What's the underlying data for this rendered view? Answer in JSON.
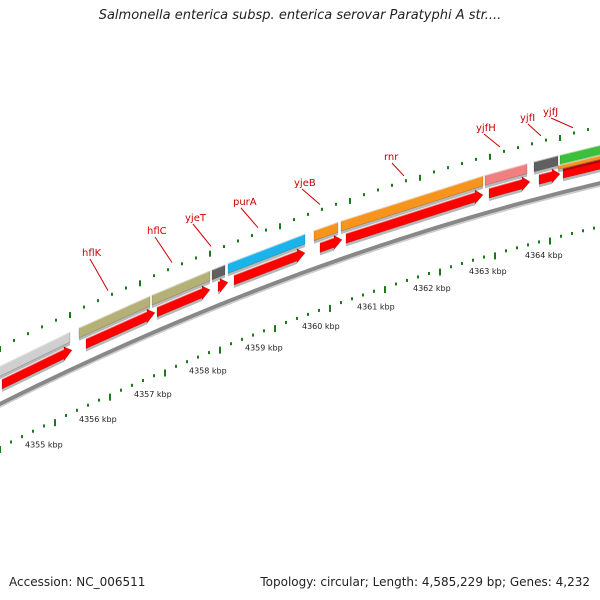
{
  "title": "Salmonella enterica subsp. enterica serovar Paratyphi A str....",
  "footer": {
    "accession": "Accession: NC_006511",
    "topology": "Topology: circular; Length: 4,585,229 bp; Genes: 4,232"
  },
  "colors": {
    "gene_label": "#cc0000",
    "feature_red": "#ff0000",
    "backbone": "#888888",
    "tick_green": "#1a7a1a",
    "olive": "#b5b176",
    "grey_light": "#cfcfcf",
    "grey_dark": "#606060",
    "cyan": "#1ab3ea",
    "orange": "#f7941d",
    "pink": "#f08080",
    "green": "#3cc03c"
  },
  "scale": {
    "unit": "kbp",
    "labels": [
      "4355 kbp",
      "4356 kbp",
      "4357 kbp",
      "4358 kbp",
      "4359 kbp",
      "4360 kbp",
      "4361 kbp",
      "4362 kbp",
      "4363 kbp",
      "4364 kbp"
    ]
  },
  "genes": [
    {
      "name": "hflK",
      "color": "olive",
      "kind": "gene"
    },
    {
      "name": "hflC",
      "color": "olive",
      "kind": "gene"
    },
    {
      "name": "yjeT",
      "color": "grey_dark",
      "kind": "gene"
    },
    {
      "name": "purA",
      "color": "cyan",
      "kind": "gene"
    },
    {
      "name": "yjeB",
      "color": "orange",
      "kind": "gene"
    },
    {
      "name": "rnr",
      "color": "orange",
      "kind": "gene"
    },
    {
      "name": "yjfH",
      "color": "pink",
      "kind": "gene"
    },
    {
      "name": "yjfI",
      "color": "grey_dark",
      "kind": "gene"
    },
    {
      "name": "yjfJ",
      "color": "green",
      "kind": "gene"
    }
  ]
}
